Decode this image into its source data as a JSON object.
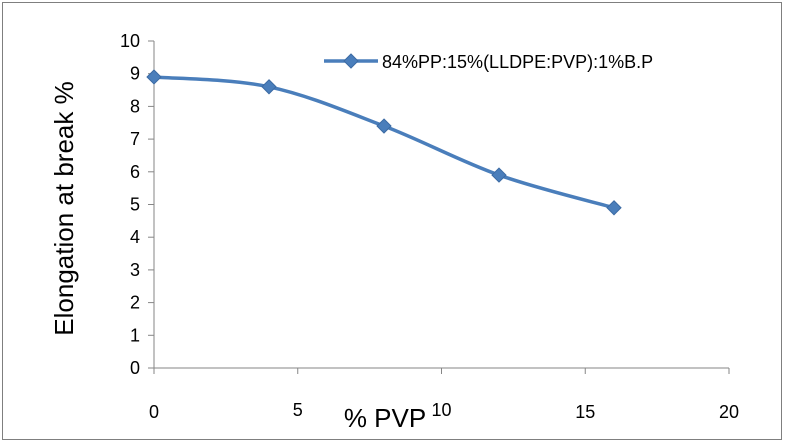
{
  "chart_data": {
    "type": "line",
    "title": "",
    "xlabel": "% PVP",
    "ylabel": "Elongation at break %",
    "xlim": [
      0,
      20
    ],
    "ylim": [
      0,
      10
    ],
    "xticks": [
      0,
      5,
      10,
      15,
      20
    ],
    "yticks": [
      0,
      1,
      2,
      3,
      4,
      5,
      6,
      7,
      8,
      9,
      10
    ],
    "grid": false,
    "legend_position": "top-right",
    "series": [
      {
        "name": "84%PP:15%(LLDPE:PVP):1%B.P",
        "color": "#4a7ebb",
        "marker": "diamond",
        "smooth": true,
        "x": [
          0,
          4,
          8,
          12,
          16
        ],
        "y": [
          8.9,
          8.6,
          7.4,
          5.9,
          4.9
        ]
      }
    ]
  }
}
